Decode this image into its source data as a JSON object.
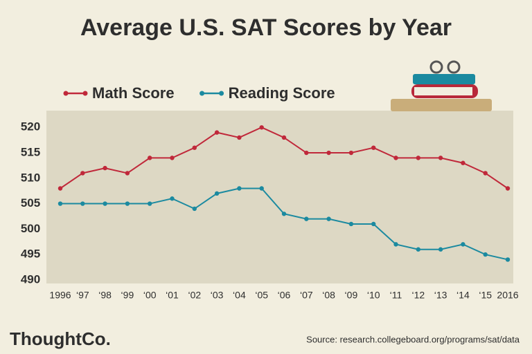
{
  "chart_data": {
    "type": "line",
    "title": "Average U.S. SAT Scores by Year",
    "categories": [
      "1996",
      "‘97",
      "‘98",
      "‘99",
      "‘00",
      "‘01",
      "‘02",
      "‘03",
      "‘04",
      "‘05",
      "‘06",
      "‘07",
      "‘08",
      "‘09",
      "‘10",
      "‘11",
      "‘12",
      "‘13",
      "‘14",
      "‘15",
      "2016"
    ],
    "series": [
      {
        "name": "Math Score",
        "color": "#c0283a",
        "values": [
          508,
          511,
          512,
          511,
          514,
          514,
          516,
          519,
          518,
          520,
          518,
          515,
          515,
          515,
          516,
          514,
          514,
          514,
          513,
          511,
          508
        ]
      },
      {
        "name": "Reading Score",
        "color": "#1b8aa0",
        "values": [
          505,
          505,
          505,
          505,
          505,
          506,
          504,
          507,
          508,
          508,
          503,
          502,
          502,
          501,
          501,
          497,
          496,
          496,
          497,
          495,
          494
        ]
      }
    ],
    "ylim": [
      489.3,
      523.3
    ],
    "yticks": [
      490,
      495,
      500,
      505,
      510,
      515,
      520
    ],
    "source": "Source: research.collegeboard.org/programs/sat/data",
    "logo": "ThoughtCo."
  }
}
